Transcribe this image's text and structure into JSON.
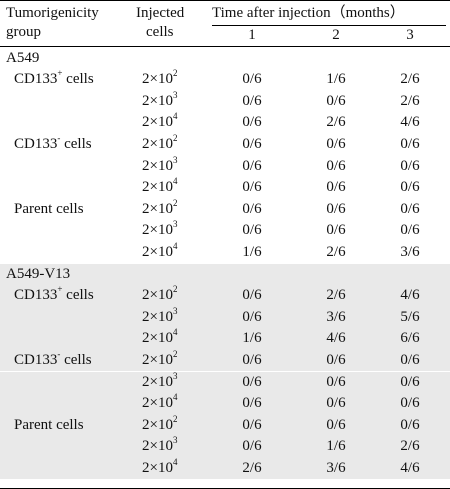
{
  "header": {
    "col1": [
      "Tumorigenicity",
      "group"
    ],
    "col2": [
      "Injected",
      "cells"
    ],
    "time_title": "Time after injection（months）",
    "months": [
      "1",
      "2",
      "3"
    ]
  },
  "lines": [
    {
      "kind": "group",
      "text": "A549"
    },
    {
      "kind": "data",
      "label": "CD133",
      "sup": "+",
      "suffix": " cells",
      "dose": "2×10",
      "exp": "2",
      "m1": "0/6",
      "m2": "1/6",
      "m3": "2/6"
    },
    {
      "kind": "data",
      "dose": "2×10",
      "exp": "3",
      "m1": "0/6",
      "m2": "0/6",
      "m3": "2/6"
    },
    {
      "kind": "data",
      "dose": "2×10",
      "exp": "4",
      "m1": "0/6",
      "m2": "2/6",
      "m3": "4/6"
    },
    {
      "kind": "data",
      "label": "CD133",
      "sup": "-",
      "suffix": " cells",
      "dose": "2×10",
      "exp": "2",
      "m1": "0/6",
      "m2": "0/6",
      "m3": "0/6"
    },
    {
      "kind": "data",
      "dose": "2×10",
      "exp": "3",
      "m1": "0/6",
      "m2": "0/6",
      "m3": "0/6"
    },
    {
      "kind": "data",
      "dose": "2×10",
      "exp": "4",
      "m1": "0/6",
      "m2": "0/6",
      "m3": "0/6"
    },
    {
      "kind": "data",
      "label": "Parent cells",
      "dose": "2×10",
      "exp": "2",
      "m1": "0/6",
      "m2": "0/6",
      "m3": "0/6"
    },
    {
      "kind": "data",
      "dose": "2×10",
      "exp": "3",
      "m1": "0/6",
      "m2": "0/6",
      "m3": "0/6"
    },
    {
      "kind": "data",
      "dose": "2×10",
      "exp": "4",
      "m1": "1/6",
      "m2": "2/6",
      "m3": "3/6"
    },
    {
      "kind": "group",
      "text": "A549-V13",
      "shaded": true
    },
    {
      "kind": "data",
      "shaded": true,
      "label": "CD133",
      "sup": "+",
      "suffix": " cells",
      "dose": "2×10",
      "exp": "2",
      "m1": "0/6",
      "m2": "2/6",
      "m3": "4/6"
    },
    {
      "kind": "data",
      "shaded": true,
      "dose": "2×10",
      "exp": "3",
      "m1": "0/6",
      "m2": "3/6",
      "m3": "5/6"
    },
    {
      "kind": "data",
      "shaded": true,
      "dose": "2×10",
      "exp": "4",
      "m1": "1/6",
      "m2": "4/6",
      "m3": "6/6"
    },
    {
      "kind": "data",
      "shaded": true,
      "label": "CD133",
      "sup": "-",
      "suffix": " cells",
      "dose": "2×10",
      "exp": "2",
      "m1": "0/6",
      "m2": "0/6",
      "m3": "0/6"
    },
    {
      "kind": "data",
      "shaded": true,
      "dose": "2×10",
      "exp": "3",
      "m1": "0/6",
      "m2": "0/6",
      "m3": "0/6"
    },
    {
      "kind": "data",
      "shaded": true,
      "dose": "2×10",
      "exp": "4",
      "m1": "0/6",
      "m2": "0/6",
      "m3": "0/6"
    },
    {
      "kind": "data",
      "shaded": true,
      "label": "Parent cells",
      "dose": "2×10",
      "exp": "2",
      "m1": "0/6",
      "m2": "0/6",
      "m3": "0/6"
    },
    {
      "kind": "data",
      "shaded": true,
      "dose": "2×10",
      "exp": "3",
      "m1": "0/6",
      "m2": "1/6",
      "m3": "2/6"
    },
    {
      "kind": "data",
      "shaded": true,
      "dose": "2×10",
      "exp": "4",
      "m1": "2/6",
      "m2": "3/6",
      "m3": "4/6"
    }
  ]
}
